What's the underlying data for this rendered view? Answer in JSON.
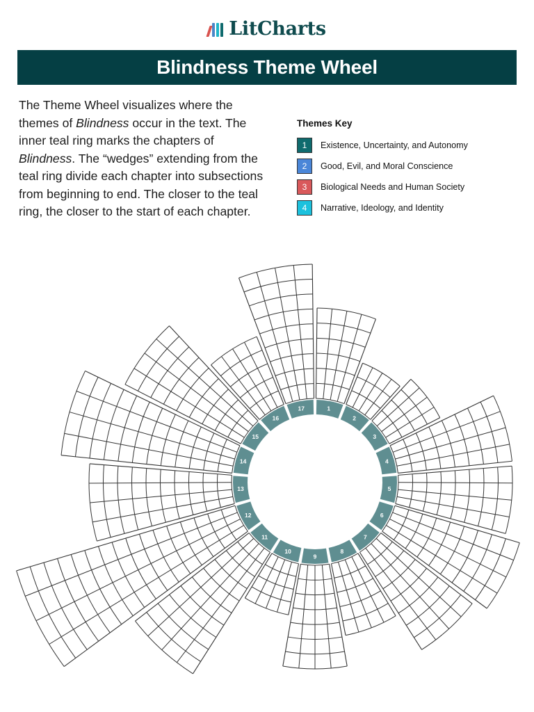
{
  "brand": {
    "name": "LitCharts",
    "mark_colors": [
      "#d9534f",
      "#4a86c8",
      "#1fb6c9",
      "#0f6b6e"
    ]
  },
  "header": {
    "title": "Blindness Theme Wheel",
    "background": "#053f44"
  },
  "intro": {
    "part1": "The Theme Wheel visualizes where the themes of ",
    "book1": "Blindness",
    "part2": " occur in the text. The inner teal ring marks the chapters of ",
    "book2": "Blindness",
    "part3": ". The “wedges” extending from the teal ring divide each chapter into subsections from beginning to end. The closer to the teal ring, the closer to the start of each chapter."
  },
  "themes_key": {
    "title": "Themes Key",
    "items": [
      {
        "number": "1",
        "label": "Existence, Uncertainty, and Autonomy",
        "color": "#0f6b6e"
      },
      {
        "number": "2",
        "label": "Good, Evil, and Moral Conscience",
        "color": "#4a86d8"
      },
      {
        "number": "3",
        "label": "Biological Needs and Human Society",
        "color": "#d9595b"
      },
      {
        "number": "4",
        "label": "Narrative, Ideology, and Identity",
        "color": "#1cc1dd"
      }
    ]
  },
  "chart_data": {
    "type": "radial-grid",
    "title": "Blindness Theme Wheel",
    "center": [
      453,
      693
    ],
    "ring": {
      "inner_radius": 97,
      "outer_radius": 118,
      "color": "#5f8e91",
      "label_color": "#ffffff"
    },
    "wedge_start_radius": 120,
    "theme_columns": 4,
    "chapters": [
      {
        "label": "1",
        "subsections": 6,
        "outer_radius": 250
      },
      {
        "label": "2",
        "subsections": 3,
        "outer_radius": 184
      },
      {
        "label": "3",
        "subsections": 4,
        "outer_radius": 202
      },
      {
        "label": "4",
        "subsections": 8,
        "outer_radius": 285
      },
      {
        "label": "5",
        "subsections": 8,
        "outer_radius": 284
      },
      {
        "label": "6",
        "subsections": 9,
        "outer_radius": 307
      },
      {
        "label": "7",
        "subsections": 8,
        "outer_radius": 286
      },
      {
        "label": "8",
        "subsections": 5,
        "outer_radius": 225
      },
      {
        "label": "9",
        "subsections": 7,
        "outer_radius": 269
      },
      {
        "label": "10",
        "subsections": 4,
        "outer_radius": 195
      },
      {
        "label": "11",
        "subsections": 10,
        "outer_radius": 327
      },
      {
        "label": "12",
        "subsections": 16,
        "outer_radius": 448
      },
      {
        "label": "13",
        "subsections": 10,
        "outer_radius": 325
      },
      {
        "label": "14",
        "subsections": 12,
        "outer_radius": 367
      },
      {
        "label": "15",
        "subsections": 9,
        "outer_radius": 307
      },
      {
        "label": "16",
        "subsections": 5,
        "outer_radius": 225
      },
      {
        "label": "17",
        "subsections": 9,
        "outer_radius": 313
      }
    ],
    "filled_cells": [],
    "legend_position": "top-right"
  }
}
